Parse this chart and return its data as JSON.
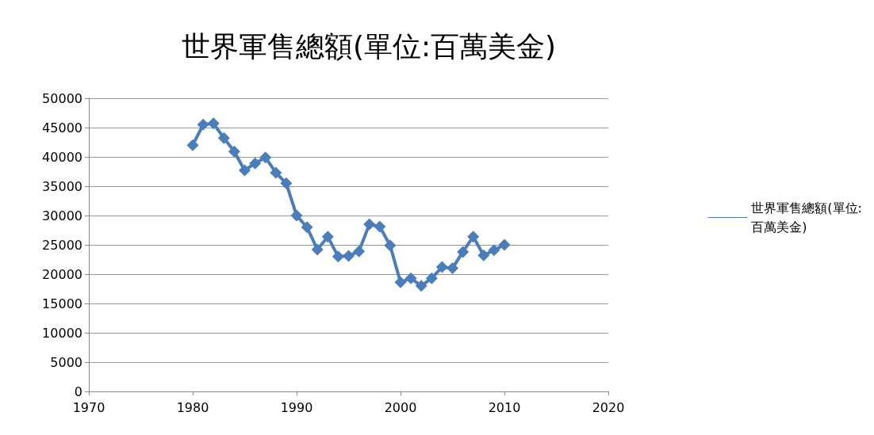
{
  "chart_data": {
    "type": "line",
    "title": "世界軍售總額(單位:百萬美金)",
    "x": [
      1980,
      1981,
      1982,
      1983,
      1984,
      1985,
      1986,
      1987,
      1988,
      1989,
      1990,
      1991,
      1992,
      1993,
      1994,
      1995,
      1996,
      1997,
      1998,
      1999,
      2000,
      2001,
      2002,
      2003,
      2004,
      2005,
      2006,
      2007,
      2008,
      2009,
      2010
    ],
    "series": [
      {
        "name": "世界軍售總額(單位:百萬美金)",
        "color": "#4a7ebb",
        "values": [
          42000,
          45500,
          45700,
          43200,
          40900,
          37700,
          38900,
          39900,
          37300,
          35500,
          30000,
          28000,
          24200,
          26400,
          23000,
          23100,
          23900,
          28500,
          28100,
          24900,
          18600,
          19300,
          18000,
          19300,
          21200,
          21000,
          23800,
          26400,
          23200,
          24100,
          25000
        ]
      }
    ],
    "xlim": [
      1970,
      2020
    ],
    "xticks": [
      1970,
      1980,
      1990,
      2000,
      2010,
      2020
    ],
    "ylim": [
      0,
      50000
    ],
    "yticks": [
      0,
      5000,
      10000,
      15000,
      20000,
      25000,
      30000,
      35000,
      40000,
      45000,
      50000
    ],
    "grid": "y",
    "legend": "right",
    "marker": "diamond",
    "line_style": "solid"
  }
}
